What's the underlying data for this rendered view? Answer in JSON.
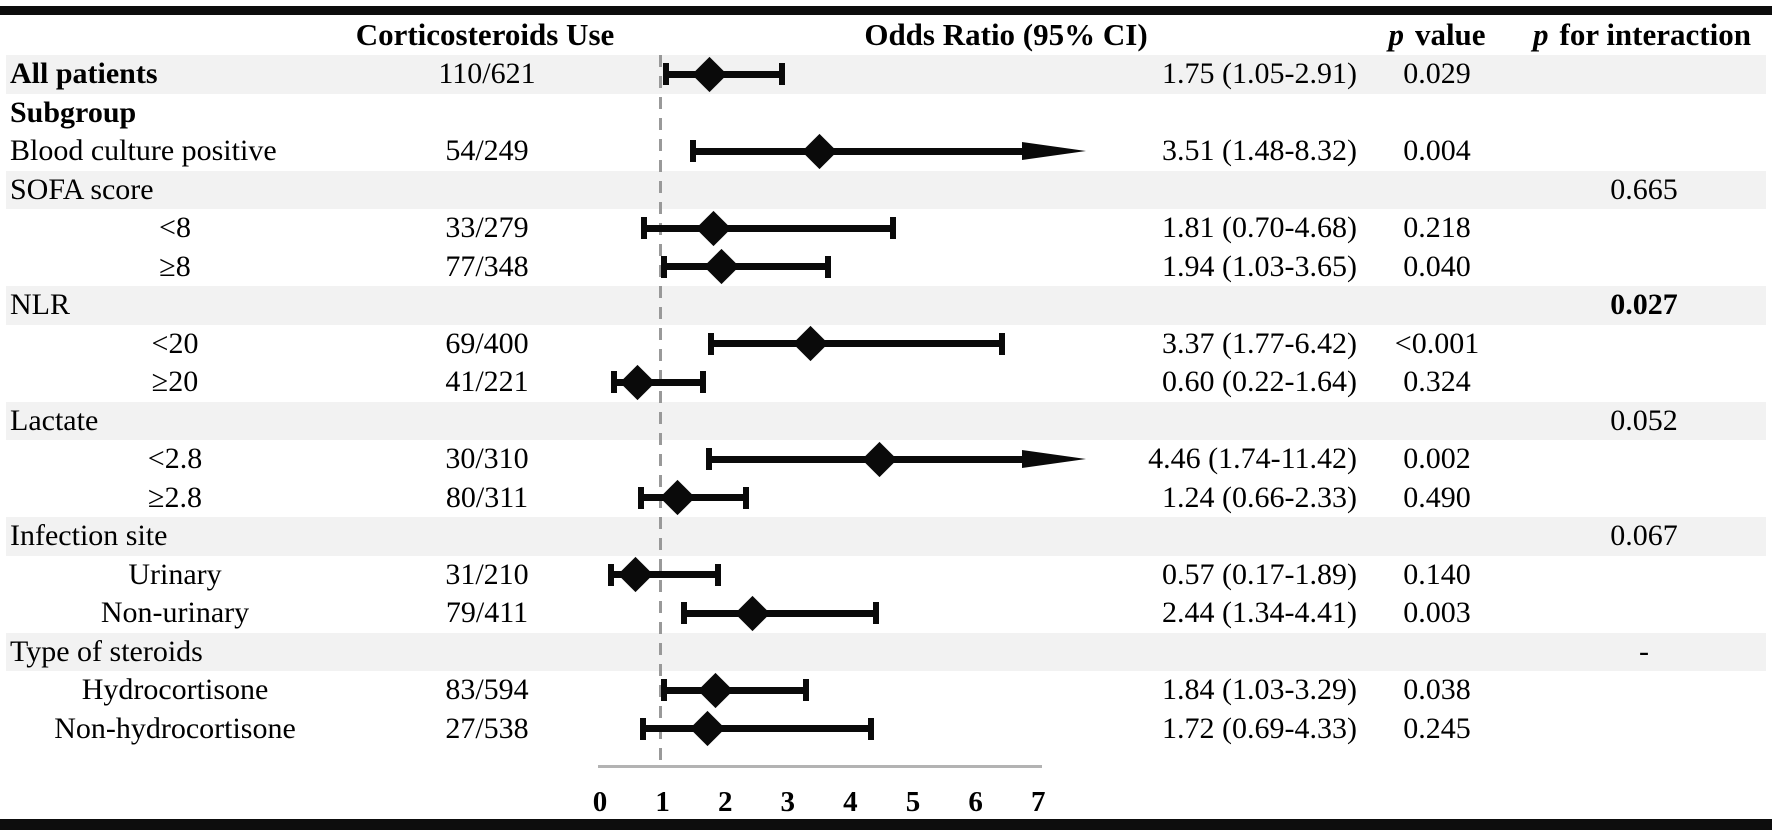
{
  "header": {
    "counts_col": "Corticosteroids Use",
    "or_col": "Odds Ratio (95% CI)",
    "p_italic": "p",
    "p_value_rest": "value",
    "p_interaction_italic": "p",
    "p_interaction_rest": "for interaction"
  },
  "colors": {
    "shade_band": "#f2f2f2",
    "text": "#000000",
    "reference_line": "#999999",
    "axis_line": "#b3b3b3",
    "marker": "#0a0a0a"
  },
  "chart_data": {
    "type": "scatter",
    "variant": "forest-plot",
    "title": "",
    "xlabel": "Odds Ratio (95% CI)",
    "xlim": [
      0,
      7
    ],
    "x_ticks": [
      "0",
      "1",
      "2",
      "3",
      "4",
      "5",
      "6",
      "7"
    ],
    "reference_line": 1,
    "grid": false,
    "rows": [
      {
        "label": "All patients",
        "row_style": "category-bold",
        "shaded": true,
        "counts": "110/621",
        "or": 1.75,
        "ci_low": 1.05,
        "ci_high": 2.91,
        "or_text": "1.75 (1.05-2.91)",
        "p_value": "0.029"
      },
      {
        "label": "Subgroup",
        "row_style": "category-bold"
      },
      {
        "label": "Blood culture positive",
        "row_style": "category",
        "counts": "54/249",
        "or": 3.51,
        "ci_low": 1.48,
        "ci_high": 8.32,
        "or_text": "3.51 (1.48-8.32)",
        "p_value": "0.004",
        "arrow": true
      },
      {
        "label": "SOFA score",
        "row_style": "category",
        "shaded": true,
        "p_interaction": "0.665"
      },
      {
        "label": "<8",
        "row_style": "sub",
        "counts": "33/279",
        "or": 1.81,
        "ci_low": 0.7,
        "ci_high": 4.68,
        "or_text": "1.81 (0.70-4.68)",
        "p_value": "0.218"
      },
      {
        "label": "≥8",
        "row_style": "sub",
        "counts": "77/348",
        "or": 1.94,
        "ci_low": 1.03,
        "ci_high": 3.65,
        "or_text": "1.94 (1.03-3.65)",
        "p_value": "0.040"
      },
      {
        "label": "NLR",
        "row_style": "category",
        "shaded": true,
        "p_interaction": "0.027",
        "p_interaction_bold": true
      },
      {
        "label": "<20",
        "row_style": "sub",
        "counts": "69/400",
        "or": 3.37,
        "ci_low": 1.77,
        "ci_high": 6.42,
        "or_text": "3.37 (1.77-6.42)",
        "p_value": "<0.001"
      },
      {
        "label": "≥20",
        "row_style": "sub",
        "counts": "41/221",
        "or": 0.6,
        "ci_low": 0.22,
        "ci_high": 1.64,
        "or_text": "0.60 (0.22-1.64)",
        "p_value": "0.324"
      },
      {
        "label": "Lactate",
        "row_style": "category",
        "shaded": true,
        "p_interaction": "0.052"
      },
      {
        "label": "<2.8",
        "row_style": "sub",
        "counts": "30/310",
        "or": 4.46,
        "ci_low": 1.74,
        "ci_high": 11.42,
        "or_text": "4.46 (1.74-11.42)",
        "p_value": "0.002",
        "arrow": true
      },
      {
        "label": "≥2.8",
        "row_style": "sub",
        "counts": "80/311",
        "or": 1.24,
        "ci_low": 0.66,
        "ci_high": 2.33,
        "or_text": "1.24 (0.66-2.33)",
        "p_value": "0.490"
      },
      {
        "label": "Infection site",
        "row_style": "category",
        "shaded": true,
        "p_interaction": "0.067"
      },
      {
        "label": "Urinary",
        "row_style": "sub",
        "counts": "31/210",
        "or": 0.57,
        "ci_low": 0.17,
        "ci_high": 1.89,
        "or_text": "0.57 (0.17-1.89)",
        "p_value": "0.140"
      },
      {
        "label": "Non-urinary",
        "row_style": "sub",
        "counts": "79/411",
        "or": 2.44,
        "ci_low": 1.34,
        "ci_high": 4.41,
        "or_text": "2.44 (1.34-4.41)",
        "p_value": "0.003"
      },
      {
        "label": "Type of steroids",
        "row_style": "category",
        "shaded": true,
        "p_interaction": "-"
      },
      {
        "label": "Hydrocortisone",
        "row_style": "sub",
        "counts": "83/594",
        "or": 1.84,
        "ci_low": 1.03,
        "ci_high": 3.29,
        "or_text": "1.84 (1.03-3.29)",
        "p_value": "0.038"
      },
      {
        "label": "Non-hydrocortisone",
        "row_style": "sub",
        "counts": "27/538",
        "or": 1.72,
        "ci_low": 0.69,
        "ci_high": 4.33,
        "or_text": "1.72 (0.69-4.33)",
        "p_value": "0.245"
      }
    ]
  }
}
